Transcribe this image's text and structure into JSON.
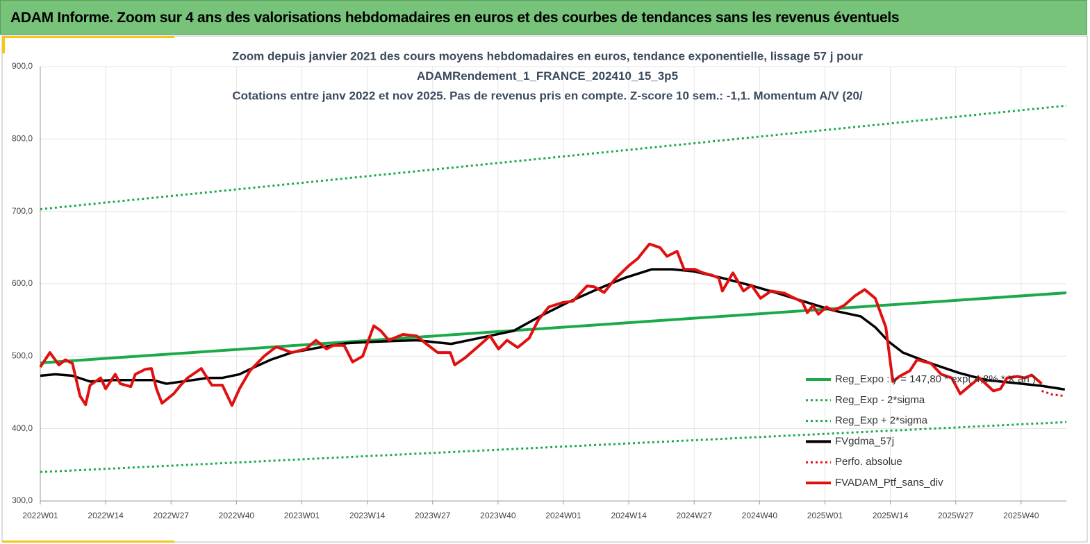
{
  "header": {
    "title": "ADAM Informe. Zoom sur 4 ans des valorisations hebdomadaires en euros et des courbes de tendances sans les revenus éventuels"
  },
  "chart_data": {
    "type": "line",
    "title": [
      "Zoom depuis janvier 2021 des cours moyens hebdomadaires  en euros, tendance exponentielle, lissage 57 j pour",
      "ADAMRendement_1_FRANCE_202410_15_3p5",
      "Cotations entre janv 2022 et nov 2025. Pas de revenus pris en compte. Z-score 10 sem.: -1,1. Momentum A/V (20/"
    ],
    "xlim": [
      0,
      204
    ],
    "xticks": [
      {
        "value": 0,
        "label": "2022W01"
      },
      {
        "value": 13,
        "label": "2022W14"
      },
      {
        "value": 26,
        "label": "2022W27"
      },
      {
        "value": 39,
        "label": "2022W40"
      },
      {
        "value": 52,
        "label": "2023W01"
      },
      {
        "value": 65,
        "label": "2023W14"
      },
      {
        "value": 78,
        "label": "2023W27"
      },
      {
        "value": 91,
        "label": "2023W40"
      },
      {
        "value": 104,
        "label": "2024W01"
      },
      {
        "value": 117,
        "label": "2024W14"
      },
      {
        "value": 130,
        "label": "2024W27"
      },
      {
        "value": 143,
        "label": "2024W40"
      },
      {
        "value": 156,
        "label": "2025W01"
      },
      {
        "value": 169,
        "label": "2025W14"
      },
      {
        "value": 182,
        "label": "2025W27"
      },
      {
        "value": 195,
        "label": "2025W40"
      }
    ],
    "ylim": [
      300,
      900
    ],
    "yticks": [
      {
        "value": 300,
        "label": "300,0"
      },
      {
        "value": 400,
        "label": "400,0"
      },
      {
        "value": 500,
        "label": "500,0"
      },
      {
        "value": 600,
        "label": "600,0"
      },
      {
        "value": 700,
        "label": "700,0"
      },
      {
        "value": 800,
        "label": "800,0"
      },
      {
        "value": 900,
        "label": "900,0"
      }
    ],
    "grid": true,
    "legend": "bottom-right",
    "series": [
      {
        "name": "Reg_Expo : y = 147,80 * exp( 4,8% * X an )",
        "color": "#1aaa4a",
        "dotted": false,
        "x": [
          0,
          204
        ],
        "values": [
          490.7,
          587.5
        ]
      },
      {
        "name": "Reg_Exp - 2*sigma",
        "color": "#1aaa4a",
        "dotted": true,
        "x": [
          0,
          204
        ],
        "values": [
          340,
          409
        ]
      },
      {
        "name": "Reg_Exp + 2*sigma",
        "color": "#1aaa4a",
        "dotted": true,
        "x": [
          0,
          204
        ],
        "values": [
          703,
          846
        ]
      },
      {
        "name": "FVgdma_57j",
        "color": "#000000",
        "dotted": false,
        "x": [
          0,
          3.0,
          6.4,
          9.9,
          14.1,
          22.4,
          25.1,
          29.3,
          33.4,
          36.2,
          39.6,
          41.7,
          45.8,
          50.0,
          55.5,
          61.0,
          66.5,
          74.8,
          81.7,
          88.6,
          94.1,
          99.6,
          105.1,
          110.6,
          116.1,
          121.6,
          125.7,
          130.1,
          135.6,
          141.1,
          146.6,
          152.1,
          157.7,
          163.1,
          166.0,
          168.7,
          171.5,
          177.1,
          182.6,
          188.1,
          193.6,
          199.1,
          203.7
        ],
        "values": [
          473,
          475,
          473,
          465,
          467,
          467,
          462,
          466,
          470,
          470,
          475,
          482,
          495,
          505,
          512,
          518,
          520,
          522,
          517,
          527,
          535,
          556,
          575,
          592,
          608,
          620,
          620,
          617,
          608,
          598,
          587,
          575,
          563,
          555,
          540,
          520,
          505,
          490,
          477,
          467,
          463,
          459,
          454
        ]
      },
      {
        "name": "Perfo. absolue",
        "color": "#e01010",
        "dotted": true,
        "x": [
          199.1,
          201.2,
          203.7
        ],
        "values": [
          452,
          447,
          445
        ]
      },
      {
        "name": "FVADAM_Ptf_sans_div",
        "color": "#e01010",
        "dotted": false,
        "x": [
          0,
          1.9,
          3.7,
          5.0,
          6.4,
          7.9,
          9.0,
          9.9,
          12.0,
          13.0,
          14.9,
          15.9,
          18.0,
          18.9,
          20.9,
          22.1,
          23.1,
          24.2,
          26.5,
          27.9,
          29.3,
          32.0,
          34.1,
          36.2,
          38.1,
          39.6,
          41.7,
          44.5,
          46.9,
          50.0,
          52.8,
          54.8,
          56.9,
          58.3,
          60.4,
          62.1,
          64.1,
          66.3,
          67.7,
          69.3,
          72.1,
          74.8,
          76.2,
          79.0,
          81.5,
          82.4,
          84.5,
          87.3,
          89.4,
          91.1,
          92.8,
          94.9,
          97.2,
          99.0,
          101.1,
          103.8,
          105.9,
          108.7,
          110.1,
          112.1,
          114.2,
          117.0,
          118.8,
          121.1,
          123.2,
          124.6,
          126.6,
          128.0,
          130.1,
          131.8,
          133.5,
          134.9,
          135.6,
          137.7,
          139.8,
          141.4,
          143.2,
          145.3,
          148.0,
          149.4,
          151.5,
          152.5,
          153.6,
          154.7,
          156.3,
          157.7,
          159.8,
          161.9,
          163.9,
          166.0,
          168.1,
          169.5,
          170.8,
          172.9,
          174.3,
          177.1,
          179.1,
          181.2,
          182.9,
          184.6,
          186.7,
          189.5,
          190.9,
          192.2,
          194.3,
          195.7,
          197.1,
          199.1
        ],
        "values": [
          485,
          505,
          488,
          495,
          490,
          445,
          433,
          460,
          470,
          455,
          475,
          462,
          458,
          475,
          482,
          483,
          455,
          435,
          448,
          460,
          470,
          483,
          460,
          460,
          432,
          455,
          480,
          500,
          513,
          505,
          510,
          522,
          510,
          515,
          515,
          492,
          500,
          542,
          535,
          522,
          530,
          528,
          520,
          505,
          505,
          488,
          498,
          515,
          528,
          510,
          522,
          512,
          525,
          550,
          568,
          574,
          576,
          597,
          596,
          588,
          606,
          625,
          635,
          655,
          650,
          638,
          645,
          620,
          620,
          615,
          612,
          608,
          590,
          615,
          590,
          598,
          580,
          590,
          587,
          582,
          575,
          560,
          570,
          558,
          568,
          563,
          570,
          583,
          592,
          580,
          540,
          465,
          472,
          480,
          495,
          490,
          475,
          470,
          448,
          458,
          470,
          452,
          455,
          470,
          472,
          470,
          474,
          462
        ]
      }
    ]
  }
}
